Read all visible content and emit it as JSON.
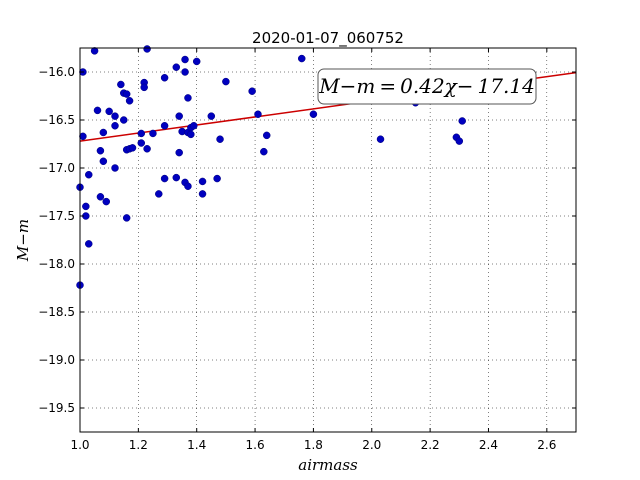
{
  "chart_data": {
    "type": "scatter",
    "title": "2020-01-07_060752",
    "xlabel": "airmass",
    "ylabel": "M−m",
    "xlim": [
      1.0,
      2.7
    ],
    "ylim": [
      -15.75,
      -19.75
    ],
    "y_inverted": true,
    "grid": true,
    "x_ticks": [
      "1.0",
      "1.2",
      "1.4",
      "1.6",
      "1.8",
      "2.0",
      "2.2",
      "2.4",
      "2.6"
    ],
    "x_tick_values": [
      1.0,
      1.2,
      1.4,
      1.6,
      1.8,
      2.0,
      2.2,
      2.4,
      2.6
    ],
    "y_ticks": [
      "−16.0",
      "−16.5",
      "−17.0",
      "−17.5",
      "−18.0",
      "−18.5",
      "−19.0",
      "−19.5"
    ],
    "y_tick_values": [
      -16.0,
      -16.5,
      -17.0,
      -17.5,
      -18.0,
      -18.5,
      -19.0,
      -19.5
    ],
    "fit": {
      "label": "M−m = 0.42χ− 17.14",
      "slope": 0.42,
      "intercept": -17.14,
      "color": "#cc0000",
      "legend_location": "top-right"
    },
    "series": [
      {
        "marker_color": "#0000bf",
        "points": [
          [
            1.0,
            -18.22
          ],
          [
            1.0,
            -17.2
          ],
          [
            1.01,
            -16.0
          ],
          [
            1.01,
            -16.67
          ],
          [
            1.02,
            -17.4
          ],
          [
            1.02,
            -17.5
          ],
          [
            1.03,
            -17.07
          ],
          [
            1.03,
            -17.79
          ],
          [
            1.05,
            -15.78
          ],
          [
            1.06,
            -16.4
          ],
          [
            1.07,
            -16.82
          ],
          [
            1.07,
            -17.3
          ],
          [
            1.08,
            -16.63
          ],
          [
            1.08,
            -16.93
          ],
          [
            1.09,
            -17.35
          ],
          [
            1.1,
            -16.41
          ],
          [
            1.12,
            -16.46
          ],
          [
            1.12,
            -16.56
          ],
          [
            1.12,
            -17.0
          ],
          [
            1.14,
            -16.13
          ],
          [
            1.15,
            -16.22
          ],
          [
            1.15,
            -16.5
          ],
          [
            1.16,
            -16.23
          ],
          [
            1.16,
            -16.81
          ],
          [
            1.16,
            -17.52
          ],
          [
            1.17,
            -16.3
          ],
          [
            1.17,
            -16.8
          ],
          [
            1.18,
            -16.79
          ],
          [
            1.21,
            -16.64
          ],
          [
            1.21,
            -16.74
          ],
          [
            1.22,
            -16.11
          ],
          [
            1.22,
            -16.16
          ],
          [
            1.23,
            -16.8
          ],
          [
            1.23,
            -15.76
          ],
          [
            1.25,
            -16.64
          ],
          [
            1.27,
            -17.27
          ],
          [
            1.29,
            -16.56
          ],
          [
            1.29,
            -16.06
          ],
          [
            1.29,
            -17.11
          ],
          [
            1.33,
            -17.1
          ],
          [
            1.33,
            -15.95
          ],
          [
            1.34,
            -16.46
          ],
          [
            1.34,
            -16.84
          ],
          [
            1.35,
            -16.62
          ],
          [
            1.36,
            -15.87
          ],
          [
            1.36,
            -16.0
          ],
          [
            1.36,
            -17.15
          ],
          [
            1.37,
            -16.27
          ],
          [
            1.37,
            -17.19
          ],
          [
            1.37,
            -16.63
          ],
          [
            1.38,
            -16.58
          ],
          [
            1.38,
            -16.65
          ],
          [
            1.39,
            -16.56
          ],
          [
            1.4,
            -15.89
          ],
          [
            1.42,
            -17.14
          ],
          [
            1.42,
            -17.27
          ],
          [
            1.45,
            -16.46
          ],
          [
            1.47,
            -17.11
          ],
          [
            1.48,
            -16.7
          ],
          [
            1.5,
            -16.1
          ],
          [
            1.59,
            -16.2
          ],
          [
            1.61,
            -16.44
          ],
          [
            1.63,
            -16.83
          ],
          [
            1.64,
            -16.66
          ],
          [
            1.76,
            -15.86
          ],
          [
            1.8,
            -16.44
          ],
          [
            2.03,
            -16.7
          ],
          [
            2.15,
            -16.32
          ],
          [
            2.29,
            -16.68
          ],
          [
            2.3,
            -16.72
          ],
          [
            2.31,
            -16.51
          ]
        ]
      }
    ]
  }
}
